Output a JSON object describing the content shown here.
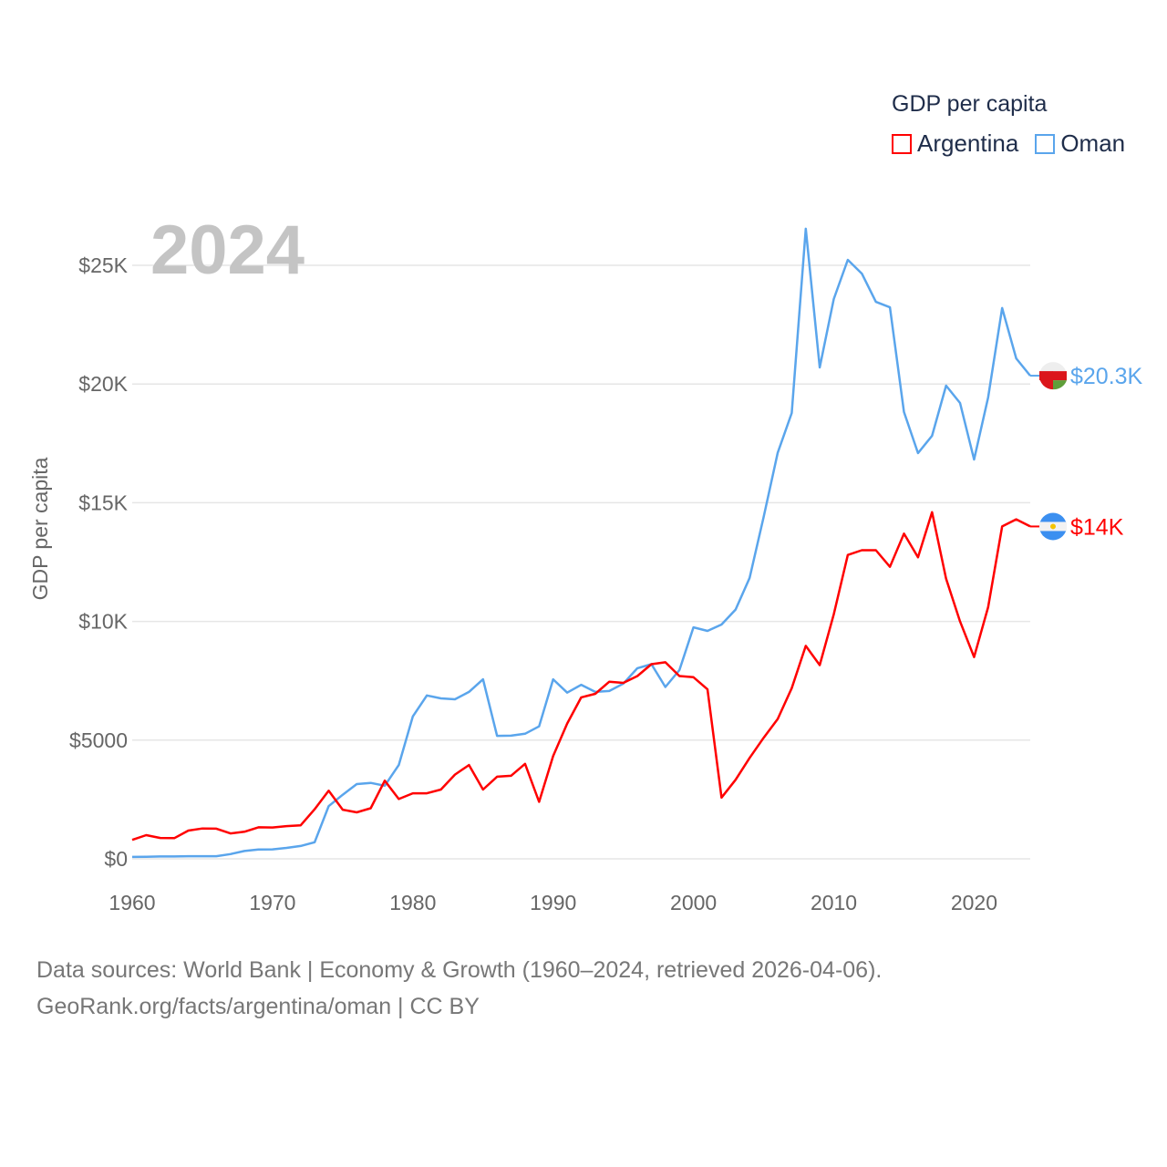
{
  "chart_data": {
    "type": "line",
    "title": "2024",
    "ylabel": "GDP per capita",
    "xlabel": "",
    "legend_title": "GDP per capita",
    "legend_position": "top-right",
    "xlim": [
      1960,
      2024
    ],
    "ylim": [
      0,
      25000
    ],
    "x_ticks": [
      1960,
      1970,
      1980,
      1990,
      2000,
      2010,
      2020
    ],
    "x_tick_labels": [
      "1960",
      "1970",
      "1980",
      "1990",
      "2000",
      "2010",
      "2020"
    ],
    "y_ticks": [
      0,
      5000,
      10000,
      15000,
      20000,
      25000
    ],
    "y_tick_labels": [
      "$0",
      "$5000",
      "$10K",
      "$15K",
      "$20K",
      "$25K"
    ],
    "grid": true,
    "x_start": 1960,
    "series": [
      {
        "name": "Argentina",
        "color": "#ff0000",
        "end_label": "$14K",
        "flag": "argentina-flag",
        "values": [
          800,
          1000,
          880,
          870,
          1190,
          1280,
          1270,
          1070,
          1140,
          1330,
          1320,
          1380,
          1410,
          2090,
          2870,
          2070,
          1960,
          2130,
          3290,
          2520,
          2760,
          2760,
          2920,
          3550,
          3950,
          2920,
          3460,
          3500,
          4000,
          2400,
          4330,
          5700,
          6800,
          6950,
          7460,
          7410,
          7700,
          8200,
          8280,
          7700,
          7650,
          7140,
          2580,
          3330,
          4250,
          5100,
          5890,
          7190,
          8970,
          8160,
          10300,
          12800,
          13000,
          13000,
          12300,
          13700,
          12700,
          14600,
          11800,
          10000,
          8500,
          10600,
          14000,
          14300,
          14000
        ]
      },
      {
        "name": "Oman",
        "color": "#5aa5ec",
        "end_label": "$20.3K",
        "flag": "oman-flag",
        "values": [
          80,
          90,
          100,
          100,
          110,
          110,
          110,
          200,
          330,
          390,
          400,
          460,
          540,
          700,
          2220,
          2700,
          3150,
          3200,
          3080,
          3950,
          6000,
          6880,
          6760,
          6720,
          7030,
          7560,
          5180,
          5190,
          5270,
          5580,
          7560,
          7000,
          7330,
          7030,
          7070,
          7380,
          8030,
          8200,
          7240,
          7950,
          9750,
          9600,
          9870,
          10500,
          11830,
          14400,
          17100,
          18780,
          26540,
          20700,
          23580,
          25230,
          24650,
          23460,
          23230,
          18820,
          17090,
          17820,
          19930,
          19200,
          16820,
          19430,
          23200,
          21080,
          20350
        ]
      }
    ]
  },
  "footer": {
    "line1": "Data sources: World Bank | Economy & Growth (1960–2024, retrieved 2026-04-06).",
    "line2": "GeoRank.org/facts/argentina/oman | CC BY"
  }
}
